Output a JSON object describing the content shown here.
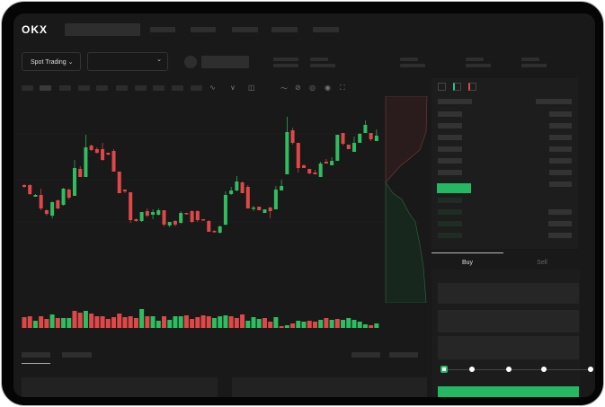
{
  "brand": {
    "logo": "OKX"
  },
  "controls": {
    "market_type": "Spot Trading",
    "pair_selector": ""
  },
  "trade_form": {
    "tabs": [
      {
        "label": "Buy",
        "active": true
      },
      {
        "label": "Sell",
        "active": false
      }
    ],
    "slider_percent": 0
  },
  "colors": {
    "up": "#2ebd5f",
    "down": "#e04848",
    "background": "#191919",
    "accent": "#25b862"
  },
  "chart_data": {
    "type": "candlestick",
    "title": "",
    "xlabel": "",
    "ylabel": "",
    "grid": true,
    "candles_ohlc": [
      [
        56,
        54,
        57,
        53
      ],
      [
        56,
        46,
        57,
        45
      ],
      [
        43,
        45,
        46,
        43
      ],
      [
        45,
        30,
        52,
        28
      ],
      [
        28,
        24,
        29,
        22
      ],
      [
        22,
        37,
        38,
        19
      ],
      [
        39,
        30,
        40,
        29
      ],
      [
        34,
        52,
        53,
        33
      ],
      [
        51,
        42,
        52,
        40
      ],
      [
        44,
        75,
        84,
        44
      ],
      [
        74,
        65,
        77,
        65
      ],
      [
        65,
        98,
        112,
        65
      ],
      [
        100,
        95,
        101,
        94
      ],
      [
        96,
        92,
        98,
        91
      ],
      [
        96,
        84,
        103,
        83
      ],
      [
        92,
        90,
        92,
        89
      ],
      [
        94,
        71,
        96,
        71
      ],
      [
        71,
        47,
        71,
        47
      ],
      [
        51,
        49,
        51,
        47
      ],
      [
        48,
        17,
        48,
        14
      ],
      [
        18,
        16,
        19,
        15
      ],
      [
        16,
        26,
        26,
        15
      ],
      [
        27,
        22,
        30,
        20
      ],
      [
        23,
        26,
        29,
        18
      ],
      [
        23,
        28,
        30,
        22
      ],
      [
        28,
        12,
        28,
        10
      ],
      [
        11,
        15,
        15,
        9
      ],
      [
        16,
        12,
        17,
        10
      ],
      [
        14,
        25,
        27,
        13
      ],
      [
        25,
        24,
        25,
        23
      ],
      [
        27,
        15,
        28,
        14
      ],
      [
        27,
        17,
        28,
        15
      ],
      [
        18,
        17,
        18,
        17
      ],
      [
        16,
        4,
        17,
        4
      ],
      [
        5,
        4,
        6,
        3
      ],
      [
        3,
        10,
        11,
        2
      ],
      [
        12,
        45,
        49,
        11
      ],
      [
        46,
        50,
        54,
        45
      ],
      [
        50,
        60,
        66,
        49
      ],
      [
        59,
        47,
        60,
        47
      ],
      [
        54,
        30,
        56,
        30
      ],
      [
        30,
        31,
        33,
        27
      ],
      [
        32,
        28,
        32,
        28
      ],
      [
        25,
        29,
        29,
        25
      ],
      [
        31,
        27,
        32,
        19
      ],
      [
        29,
        51,
        55,
        29
      ],
      [
        50,
        55,
        62,
        50
      ],
      [
        68,
        115,
        132,
        68
      ],
      [
        117,
        103,
        120,
        101
      ],
      [
        103,
        75,
        103,
        70
      ],
      [
        78,
        75,
        79,
        75
      ],
      [
        74,
        69,
        74,
        68
      ],
      [
        70,
        68,
        73,
        68
      ],
      [
        65,
        80,
        82,
        65
      ],
      [
        82,
        80,
        85,
        80
      ],
      [
        78,
        83,
        87,
        78
      ],
      [
        83,
        112,
        112,
        83
      ],
      [
        114,
        102,
        114,
        100
      ],
      [
        101,
        96,
        101,
        96
      ],
      [
        93,
        103,
        110,
        93
      ],
      [
        103,
        113,
        114,
        103
      ],
      [
        114,
        123,
        128,
        114
      ],
      [
        114,
        107,
        114,
        105
      ],
      [
        105,
        111,
        118,
        105
      ]
    ],
    "volume": [
      12,
      13,
      8,
      13,
      10,
      15,
      11,
      11,
      11,
      19,
      17,
      19,
      16,
      13,
      13,
      10,
      12,
      16,
      12,
      13,
      11,
      21,
      13,
      13,
      8,
      13,
      9,
      13,
      13,
      14,
      10,
      12,
      14,
      13,
      11,
      13,
      14,
      13,
      11,
      15,
      8,
      12,
      10,
      11,
      7,
      12,
      2,
      3,
      5,
      8,
      7,
      8,
      7,
      9,
      11,
      9,
      10,
      9,
      11,
      9,
      7,
      4,
      3,
      5
    ],
    "volume_colors": "rrgrrgrggrrgrrrrrrrrrgrggrgggrrrrrgggrrrgggrrgrgrggrrgrgrgggggrg"
  }
}
